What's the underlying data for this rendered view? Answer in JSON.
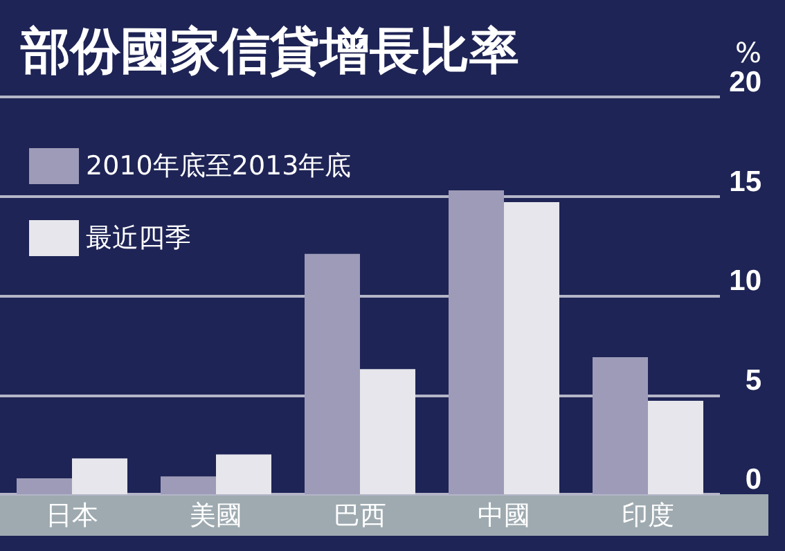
{
  "chart_data": {
    "type": "bar",
    "title": "部份國家信貸增長比率",
    "ylabel": "%",
    "categories": [
      "日本",
      "美國",
      "巴西",
      "中國",
      "印度"
    ],
    "series": [
      {
        "name": "2010年底至2013年底",
        "color": "#9e9bb8",
        "values": [
          0.8,
          0.9,
          12.1,
          15.3,
          6.9
        ]
      },
      {
        "name": "最近四季",
        "color": "#e6e6ec",
        "values": [
          1.8,
          2.0,
          6.3,
          14.7,
          4.7
        ]
      }
    ],
    "ylim": [
      0,
      20
    ],
    "yticks": [
      0,
      5,
      10,
      15,
      20
    ],
    "grid": "y",
    "legend": "top left"
  }
}
